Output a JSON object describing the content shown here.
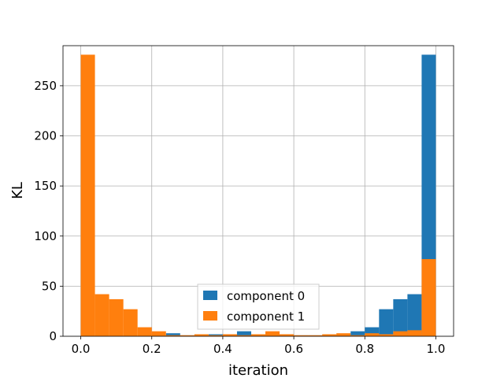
{
  "chart_data": {
    "type": "bar",
    "title": "",
    "xlabel": "iteration",
    "ylabel": "KL",
    "xlim": [
      -0.05,
      1.05
    ],
    "ylim": [
      0,
      290
    ],
    "xticks": [
      0.0,
      0.2,
      0.4,
      0.6,
      0.8,
      1.0
    ],
    "xtick_labels": [
      "0.0",
      "0.2",
      "0.4",
      "0.6",
      "0.8",
      "1.0"
    ],
    "yticks": [
      0,
      50,
      100,
      150,
      200,
      250
    ],
    "ytick_labels": [
      "0",
      "50",
      "100",
      "150",
      "200",
      "250"
    ],
    "grid": true,
    "legend_position": "lower-center",
    "bin_edges": [
      0.0,
      0.04,
      0.08,
      0.12,
      0.16,
      0.2,
      0.24,
      0.28,
      0.32,
      0.36,
      0.4,
      0.44,
      0.48,
      0.52,
      0.56,
      0.6,
      0.64,
      0.68,
      0.72,
      0.76,
      0.8,
      0.84,
      0.88,
      0.92,
      0.96,
      1.0
    ],
    "series": [
      {
        "name": "component 0",
        "color": "#1f77b4",
        "values": [
          0,
          0,
          0,
          0,
          0,
          0,
          3,
          1,
          1,
          2,
          2,
          5,
          1,
          1,
          2,
          1,
          1,
          1,
          2,
          5,
          9,
          27,
          37,
          42,
          281
        ]
      },
      {
        "name": "component 1",
        "color": "#ff7f0e",
        "values": [
          281,
          42,
          37,
          27,
          9,
          5,
          1,
          1,
          2,
          1,
          2,
          1,
          2,
          5,
          2,
          1,
          1,
          2,
          3,
          1,
          3,
          2,
          5,
          6,
          77
        ]
      }
    ]
  }
}
